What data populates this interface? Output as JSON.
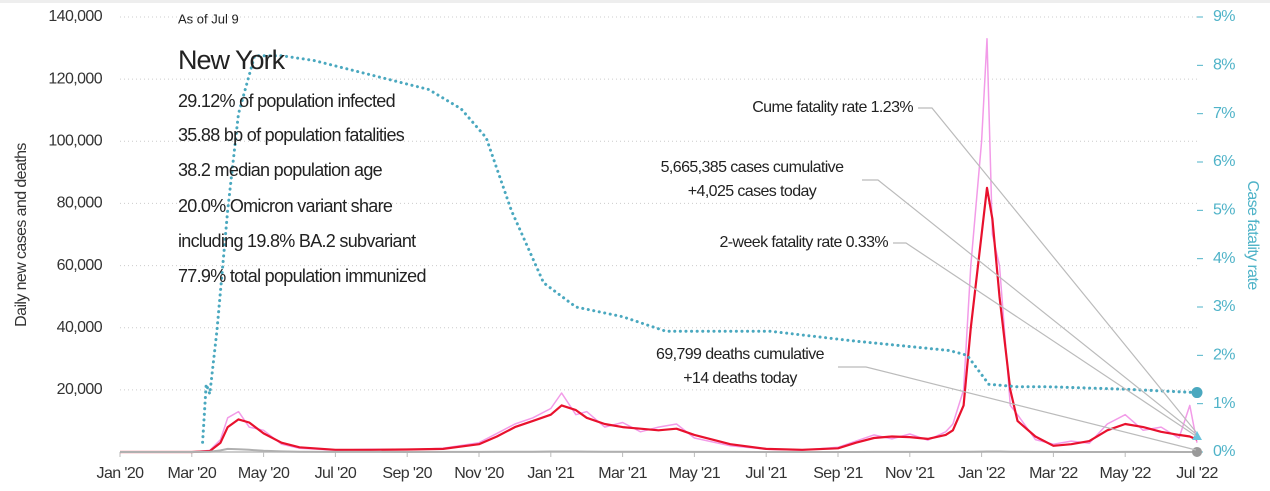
{
  "chart_data": {
    "type": "line",
    "ylabel": "Daily new cases and deaths",
    "y2label": "Case fatality rate",
    "info": {
      "date": "As of Jul 9",
      "title": "New York",
      "lines": [
        "29.12% of population infected",
        "35.88 bp of population fatalities",
        "38.2 median population age",
        "20.0% Omicron variant share",
        "including 19.8% BA.2 subvariant",
        "77.9% total population immunized"
      ]
    },
    "annotations": [
      [
        "Cume fatality rate 1.23%"
      ],
      [
        "5,665,385 cases cumulative",
        "+4,025 cases today"
      ],
      [
        "2-week fatality rate 0.33%"
      ],
      [
        "69,799 deaths cumulative",
        "+14 deaths today"
      ]
    ],
    "xlim": [
      0,
      30
    ],
    "xticks": [
      {
        "value": 0,
        "label": "Jan '20"
      },
      {
        "value": 2,
        "label": "Mar '20"
      },
      {
        "value": 4,
        "label": "May '20"
      },
      {
        "value": 6,
        "label": "Jul '20"
      },
      {
        "value": 8,
        "label": "Sep '20"
      },
      {
        "value": 10,
        "label": "Nov '20"
      },
      {
        "value": 12,
        "label": "Jan '21"
      },
      {
        "value": 14,
        "label": "Mar '21"
      },
      {
        "value": 16,
        "label": "May '21"
      },
      {
        "value": 18,
        "label": "Jul '21"
      },
      {
        "value": 20,
        "label": "Sep '21"
      },
      {
        "value": 22,
        "label": "Nov '21"
      },
      {
        "value": 24,
        "label": "Jan '22"
      },
      {
        "value": 26,
        "label": "Mar '22"
      },
      {
        "value": 28,
        "label": "May '22"
      },
      {
        "value": 30,
        "label": "Jul '22"
      }
    ],
    "ylim": [
      0,
      140000
    ],
    "yticks": [
      {
        "value": 20000,
        "label": "20,000"
      },
      {
        "value": 40000,
        "label": "40,000"
      },
      {
        "value": 60000,
        "label": "60,000"
      },
      {
        "value": 80000,
        "label": "80,000"
      },
      {
        "value": 100000,
        "label": "100,000"
      },
      {
        "value": 120000,
        "label": "120,000"
      },
      {
        "value": 140000,
        "label": "140,000"
      }
    ],
    "y2lim": [
      0,
      9
    ],
    "y2ticks": [
      {
        "value": 0,
        "label": "0%"
      },
      {
        "value": 1,
        "label": "1%"
      },
      {
        "value": 2,
        "label": "2%"
      },
      {
        "value": 3,
        "label": "3%"
      },
      {
        "value": 4,
        "label": "4%"
      },
      {
        "value": 5,
        "label": "5%"
      },
      {
        "value": 6,
        "label": "6%"
      },
      {
        "value": 7,
        "label": "7%"
      },
      {
        "value": 8,
        "label": "8%"
      },
      {
        "value": 9,
        "label": "9%"
      }
    ],
    "grid": true,
    "two_week_fatality_rate": 0.33,
    "x": [
      0,
      1,
      2,
      2.5,
      2.8,
      3,
      3.3,
      3.6,
      4,
      4.5,
      5,
      6,
      7,
      8,
      9,
      10,
      10.5,
      11,
      11.5,
      12,
      12.3,
      12.7,
      13,
      13.5,
      14,
      14.5,
      15,
      15.5,
      16,
      17,
      18,
      19,
      20,
      20.5,
      21,
      21.5,
      22,
      22.5,
      23,
      23.2,
      23.5,
      23.7,
      24,
      24.15,
      24.3,
      24.5,
      24.8,
      25,
      25.5,
      26,
      26.5,
      27,
      27.5,
      28,
      28.5,
      29,
      29.5,
      29.8,
      30
    ],
    "series": [
      {
        "color": "#f29be8",
        "width": 1.5,
        "values": [
          0,
          0,
          0,
          500,
          4000,
          11000,
          13000,
          8000,
          7000,
          2500,
          1200,
          600,
          900,
          700,
          1200,
          3000,
          6000,
          9000,
          11000,
          14000,
          19000,
          12000,
          13000,
          8000,
          9500,
          6500,
          8000,
          9000,
          4500,
          2000,
          900,
          600,
          1500,
          3500,
          5500,
          4200,
          5800,
          3800,
          6500,
          9000,
          20000,
          60000,
          100000,
          133000,
          70000,
          60000,
          15000,
          12000,
          4000,
          2500,
          3500,
          2800,
          9000,
          12000,
          7000,
          8000,
          4500,
          15000,
          3000
        ]
      },
      {
        "color": "#e8112d",
        "width": 2.2,
        "values": [
          0,
          0,
          0,
          300,
          3000,
          8000,
          10500,
          9500,
          6000,
          3000,
          1500,
          700,
          700,
          800,
          1000,
          2500,
          5000,
          8000,
          10000,
          12000,
          15000,
          13500,
          11000,
          9000,
          8000,
          7500,
          7000,
          7500,
          5500,
          2500,
          1000,
          700,
          1200,
          3000,
          4500,
          5000,
          4800,
          4200,
          5500,
          7000,
          15000,
          40000,
          70000,
          85000,
          75000,
          50000,
          20000,
          10000,
          5000,
          2000,
          2500,
          3500,
          7000,
          9000,
          8000,
          6500,
          5500,
          5000,
          4000
        ]
      },
      {
        "color": "#b0b0b0",
        "width": 2,
        "values": [
          0,
          0,
          0,
          100,
          500,
          1000,
          900,
          700,
          400,
          200,
          60,
          25,
          20,
          15,
          20,
          30,
          60,
          80,
          110,
          150,
          160,
          150,
          120,
          90,
          70,
          60,
          55,
          50,
          40,
          20,
          8,
          6,
          10,
          15,
          25,
          30,
          30,
          28,
          30,
          40,
          60,
          90,
          130,
          160,
          170,
          150,
          110,
          70,
          35,
          20,
          10,
          8,
          15,
          25,
          25,
          20,
          15,
          12,
          10
        ]
      },
      {
        "color": "#4aa8bf",
        "width": 3,
        "axis": "y2",
        "x": [
          2.3,
          2.4,
          2.5,
          2.7,
          3.0,
          3.3,
          3.75,
          4.5,
          5.4,
          7,
          8.6,
          9.5,
          10.2,
          10.9,
          11.8,
          12.7,
          14,
          15.2,
          18.1,
          20.4,
          23.1,
          23.6,
          23.8,
          24.2,
          25,
          25.9,
          28,
          30
        ],
        "values": [
          0.2,
          1.4,
          1.2,
          2.5,
          5,
          7,
          8.2,
          8.2,
          8.1,
          7.8,
          7.5,
          7.1,
          6.5,
          5,
          3.5,
          3,
          2.8,
          2.5,
          2.5,
          2.3,
          2.1,
          2,
          1.8,
          1.4,
          1.35,
          1.35,
          1.3,
          1.23
        ]
      }
    ]
  }
}
